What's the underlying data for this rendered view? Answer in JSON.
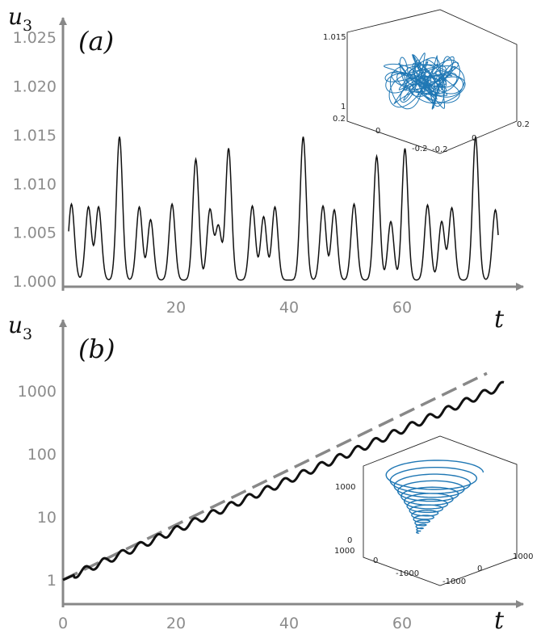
{
  "chart_data": [
    {
      "type": "line",
      "panel_label": "(a)",
      "xlabel": "t",
      "ylabel": "u",
      "ylabel_subscript": "3",
      "x_ticks": [
        "20",
        "40",
        "60"
      ],
      "y_ticks": [
        "1.000",
        "1.005",
        "1.010",
        "1.015",
        "1.020",
        "1.025"
      ],
      "xlim": [
        0,
        80
      ],
      "ylim": [
        1.0,
        1.027
      ],
      "grid": false,
      "series": [
        {
          "style": "solid",
          "color": "#111111",
          "peaks": [
            {
              "t": 1.5,
              "v": 1.0078
            },
            {
              "t": 4.5,
              "v": 1.0075
            },
            {
              "t": 6.3,
              "v": 1.0075
            },
            {
              "t": 10.0,
              "v": 1.0147
            },
            {
              "t": 13.5,
              "v": 1.0075
            },
            {
              "t": 15.5,
              "v": 1.0062
            },
            {
              "t": 19.3,
              "v": 1.0078
            },
            {
              "t": 23.5,
              "v": 1.0124
            },
            {
              "t": 26.0,
              "v": 1.0072
            },
            {
              "t": 27.5,
              "v": 1.0055
            },
            {
              "t": 29.3,
              "v": 1.0135
            },
            {
              "t": 33.5,
              "v": 1.0076
            },
            {
              "t": 35.5,
              "v": 1.0065
            },
            {
              "t": 37.5,
              "v": 1.0075
            },
            {
              "t": 42.5,
              "v": 1.0147
            },
            {
              "t": 46.0,
              "v": 1.0076
            },
            {
              "t": 48.0,
              "v": 1.0072
            },
            {
              "t": 51.5,
              "v": 1.0078
            },
            {
              "t": 55.5,
              "v": 1.0127
            },
            {
              "t": 58.0,
              "v": 1.006
            },
            {
              "t": 60.5,
              "v": 1.0135
            },
            {
              "t": 64.5,
              "v": 1.0077
            },
            {
              "t": 67.0,
              "v": 1.006
            },
            {
              "t": 68.8,
              "v": 1.0074
            },
            {
              "t": 73.0,
              "v": 1.0147
            },
            {
              "t": 76.5,
              "v": 1.0072
            }
          ]
        }
      ],
      "inset": {
        "type": "3d-trajectory",
        "color": "#1f77b4",
        "vertical_ticks": [
          "1.015",
          "1"
        ],
        "left_ticks": [
          "0.2",
          "0",
          "-0.2"
        ],
        "right_ticks": [
          "-0.2",
          "0",
          "0.2"
        ]
      }
    },
    {
      "type": "line",
      "panel_label": "(b)",
      "xlabel": "t",
      "ylabel": "u",
      "ylabel_subscript": "3",
      "x_ticks": [
        "0",
        "20",
        "40",
        "60"
      ],
      "y_ticks": [
        "1",
        "10",
        "100",
        "1000"
      ],
      "y_scale": "log",
      "xlim": [
        0,
        80
      ],
      "ylim": [
        1,
        3000
      ],
      "grid": false,
      "series": [
        {
          "style": "solid",
          "color": "#111111",
          "growth_rate": 0.089,
          "oscillation_period": 3.2,
          "x": [
            0,
            78
          ],
          "y": [
            1,
            1250
          ]
        },
        {
          "style": "dashed",
          "color": "#888888",
          "x": [
            0,
            75
          ],
          "y": [
            1,
            1900
          ]
        }
      ],
      "inset": {
        "type": "3d-trajectory",
        "color": "#1f77b4",
        "vertical_ticks": [
          "1000",
          "0"
        ],
        "left_ticks": [
          "1000",
          "0",
          "-1000"
        ],
        "right_ticks": [
          "-1000",
          "0",
          "1000"
        ]
      }
    }
  ]
}
